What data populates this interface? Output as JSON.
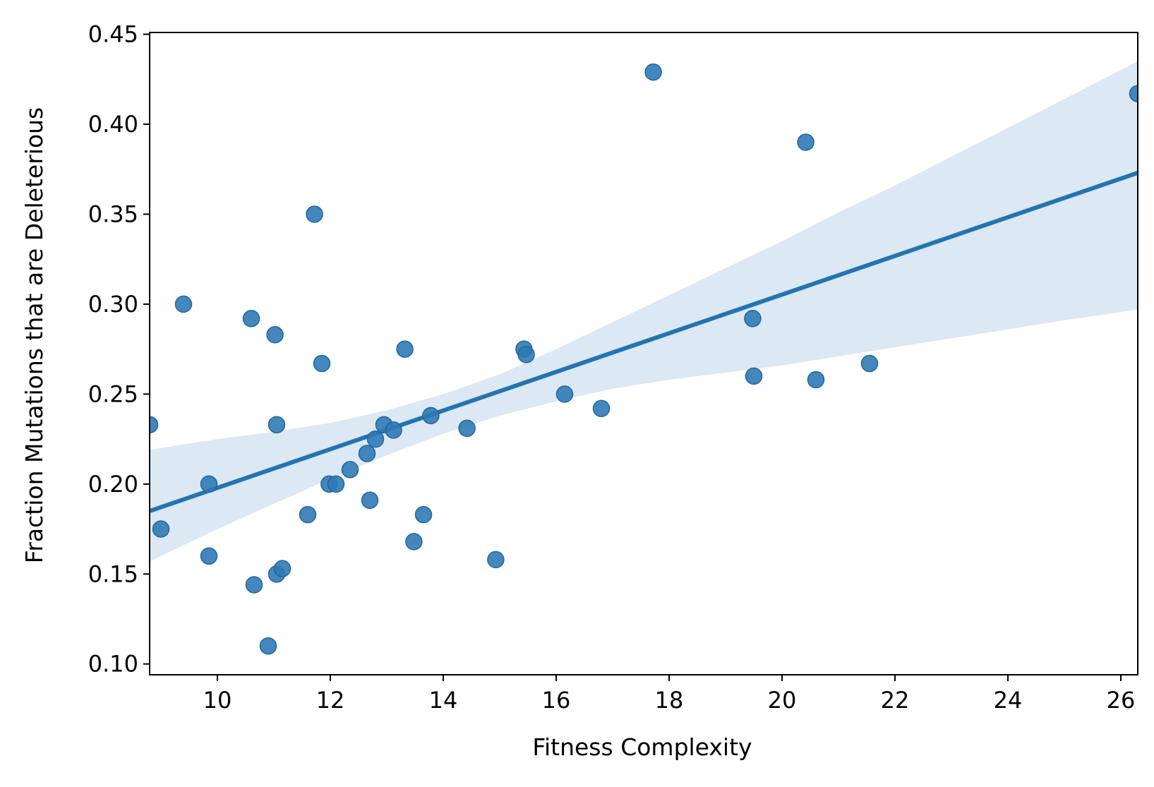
{
  "chart_data": {
    "type": "scatter",
    "title": "",
    "xlabel": "Fitness Complexity",
    "ylabel": "Fraction Mutations that are Deleterious",
    "xlim": [
      8.8,
      26.3
    ],
    "ylim": [
      0.094,
      0.451
    ],
    "x_ticks": [
      10,
      12,
      14,
      16,
      18,
      20,
      22,
      24,
      26
    ],
    "x_tick_labels": [
      "10",
      "12",
      "14",
      "16",
      "18",
      "20",
      "22",
      "24",
      "26"
    ],
    "y_ticks": [
      0.1,
      0.15,
      0.2,
      0.25,
      0.3,
      0.35,
      0.4,
      0.45
    ],
    "y_tick_labels": [
      "0.10",
      "0.15",
      "0.20",
      "0.25",
      "0.30",
      "0.35",
      "0.40",
      "0.45"
    ],
    "grid": false,
    "legend": "none",
    "colors": {
      "points": "#2f7ab5",
      "point_edge": "#1f67a3",
      "fit_line": "#2474b0",
      "ci_band": "#dce8f4"
    },
    "points": {
      "x": [
        8.8,
        9.0,
        9.4,
        9.85,
        9.85,
        10.6,
        10.65,
        10.9,
        11.02,
        11.05,
        11.05,
        11.15,
        11.6,
        11.72,
        11.85,
        11.98,
        12.1,
        12.35,
        12.65,
        12.7,
        12.8,
        12.95,
        13.12,
        13.32,
        13.48,
        13.65,
        13.78,
        14.42,
        14.93,
        15.43,
        15.47,
        16.15,
        16.8,
        17.72,
        19.48,
        19.5,
        20.42,
        20.6,
        21.55,
        26.3
      ],
      "y": [
        0.233,
        0.175,
        0.3,
        0.2,
        0.16,
        0.292,
        0.144,
        0.11,
        0.283,
        0.233,
        0.15,
        0.153,
        0.183,
        0.35,
        0.267,
        0.2,
        0.2,
        0.208,
        0.217,
        0.191,
        0.225,
        0.233,
        0.23,
        0.275,
        0.168,
        0.183,
        0.238,
        0.231,
        0.158,
        0.275,
        0.272,
        0.25,
        0.242,
        0.429,
        0.292,
        0.26,
        0.39,
        0.258,
        0.267,
        0.417
      ]
    },
    "regression": {
      "x": [
        8.8,
        26.3
      ],
      "y": [
        0.185,
        0.373
      ]
    },
    "confidence_band": {
      "x": [
        8.8,
        10.0,
        11.0,
        12.0,
        13.0,
        14.0,
        15.0,
        16.0,
        17.0,
        18.0,
        19.0,
        20.0,
        21.0,
        22.0,
        23.0,
        24.0,
        25.0,
        26.3
      ],
      "upper": [
        0.219,
        0.225,
        0.229,
        0.234,
        0.241,
        0.25,
        0.261,
        0.275,
        0.29,
        0.305,
        0.32,
        0.335,
        0.351,
        0.366,
        0.382,
        0.398,
        0.414,
        0.435
      ],
      "lower": [
        0.157,
        0.175,
        0.189,
        0.203,
        0.216,
        0.228,
        0.238,
        0.246,
        0.253,
        0.258,
        0.262,
        0.266,
        0.271,
        0.276,
        0.281,
        0.286,
        0.291,
        0.297
      ]
    }
  }
}
